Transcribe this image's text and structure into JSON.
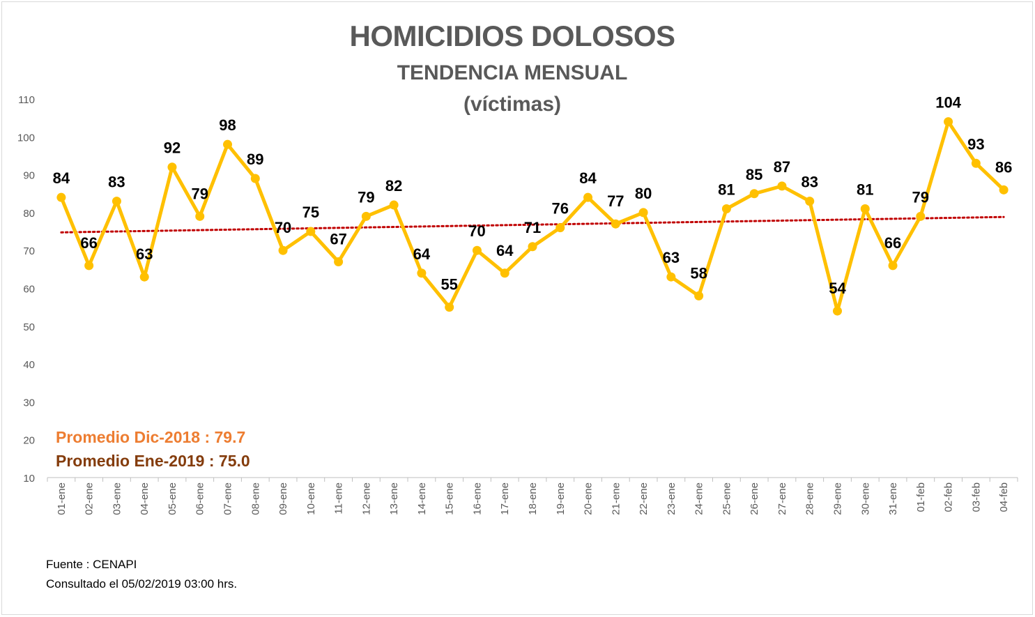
{
  "title": "HOMICIDIOS DOLOSOS",
  "subtitle": "TENDENCIA MENSUAL",
  "unit_label": "(víctimas)",
  "averages": {
    "dic": "Promedio Dic-2018  : 79.7",
    "ene": "Promedio Ene-2019 : 75.0"
  },
  "source": {
    "line1": "Fuente : CENAPI",
    "line2": "Consultado el 05/02/2019  03:00 hrs."
  },
  "colors": {
    "series": "#ffc000",
    "trend": "#c00000",
    "avg_dic": "#ed7d31",
    "avg_ene": "#843c0c"
  },
  "chart_data": {
    "type": "line",
    "ylim": [
      10,
      110
    ],
    "yticks": [
      10,
      20,
      30,
      40,
      50,
      60,
      70,
      80,
      90,
      100,
      110
    ],
    "grid": false,
    "categories": [
      "01-ene",
      "02-ene",
      "03-ene",
      "04-ene",
      "05-ene",
      "06-ene",
      "07-ene",
      "08-ene",
      "09-ene",
      "10-ene",
      "11-ene",
      "12-ene",
      "13-ene",
      "14-ene",
      "15-ene",
      "16-ene",
      "17-ene",
      "18-ene",
      "19-ene",
      "20-ene",
      "21-ene",
      "22-ene",
      "23-ene",
      "24-ene",
      "25-ene",
      "26-ene",
      "27-ene",
      "28-ene",
      "29-ene",
      "30-ene",
      "31-ene",
      "01-feb",
      "02-feb",
      "03-feb",
      "04-feb"
    ],
    "series": [
      {
        "values": [
          84,
          66,
          83,
          63,
          92,
          79,
          98,
          89,
          70,
          75,
          67,
          79,
          82,
          64,
          55,
          70,
          64,
          71,
          76,
          84,
          77,
          80,
          63,
          58,
          81,
          85,
          87,
          83,
          54,
          81,
          66,
          79,
          104,
          93,
          86
        ]
      }
    ],
    "trendline": {
      "type": "linear",
      "style": "dotted"
    }
  }
}
